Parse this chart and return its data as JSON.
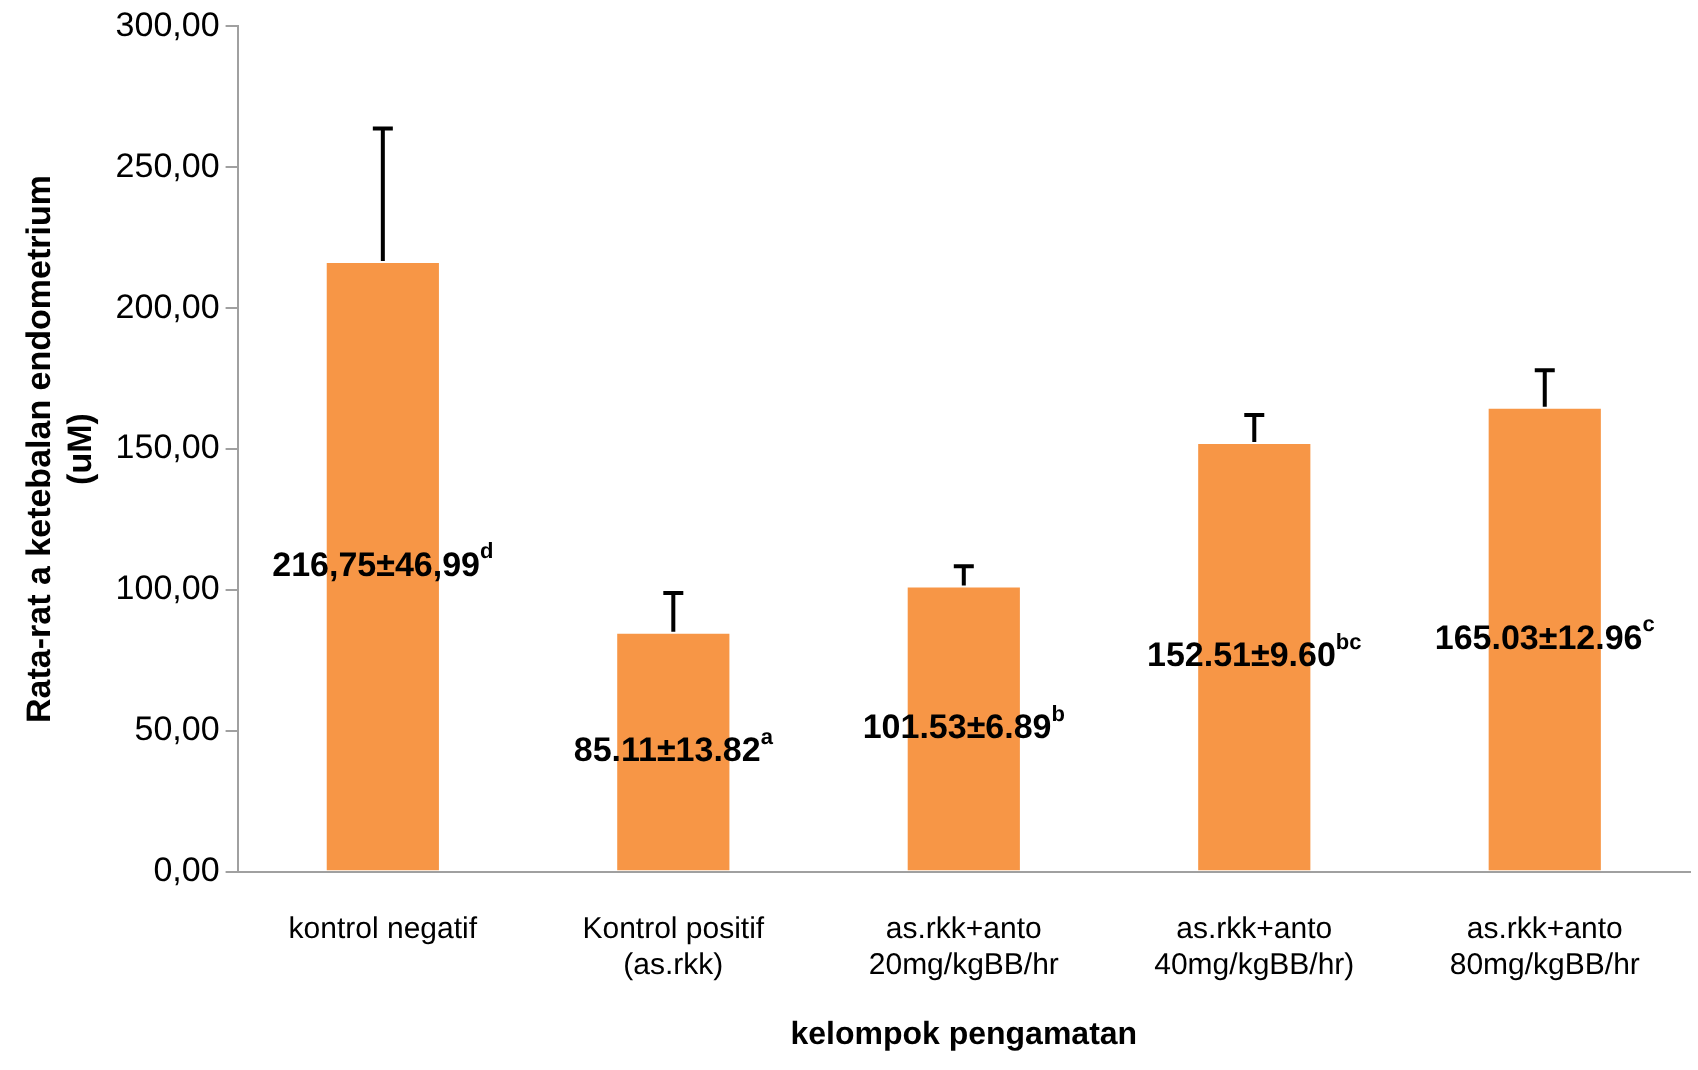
{
  "chart_data": {
    "type": "bar",
    "xlabel": "kelompok pengamatan",
    "ylabel": "Rata-rat a ketebalan endometrium (uM)",
    "categories": [
      "kontrol negatif",
      "Kontrol positif (as.rkk)",
      "as.rkk+anto 20mg/kgBB/hr",
      "as.rkk+anto 40mg/kgBB/hr)",
      "as.rkk+anto 80mg/kgBB/hr"
    ],
    "values": [
      216.75,
      85.11,
      101.53,
      152.51,
      165.03
    ],
    "color": "#f79646",
    "errors": [
      [
        216.75,
        263.74
      ],
      [
        85.11,
        98.93
      ],
      [
        101.53,
        108.42
      ],
      [
        152.51,
        162.11
      ],
      [
        165.03,
        177.99
      ]
    ],
    "value_labels": [
      "216,75±46,99$^{d}$",
      "85.11±13.82$^{a}$",
      "101.53±6.89$^{b}$",
      "152.51±9.60$^{bc}$",
      "165.03±12.96$^{c}$"
    ],
    "ylim": [
      0,
      300
    ],
    "yticks": [
      {
        "value": 0,
        "label": "0,00"
      },
      {
        "value": 50,
        "label": "50,00"
      },
      {
        "value": 100,
        "label": "100,00"
      },
      {
        "value": 150,
        "label": "150,00"
      },
      {
        "value": 200,
        "label": "200,00"
      },
      {
        "value": 250,
        "label": "250,00"
      },
      {
        "value": 300,
        "label": "300,00"
      }
    ],
    "grid": false,
    "legend": false
  }
}
